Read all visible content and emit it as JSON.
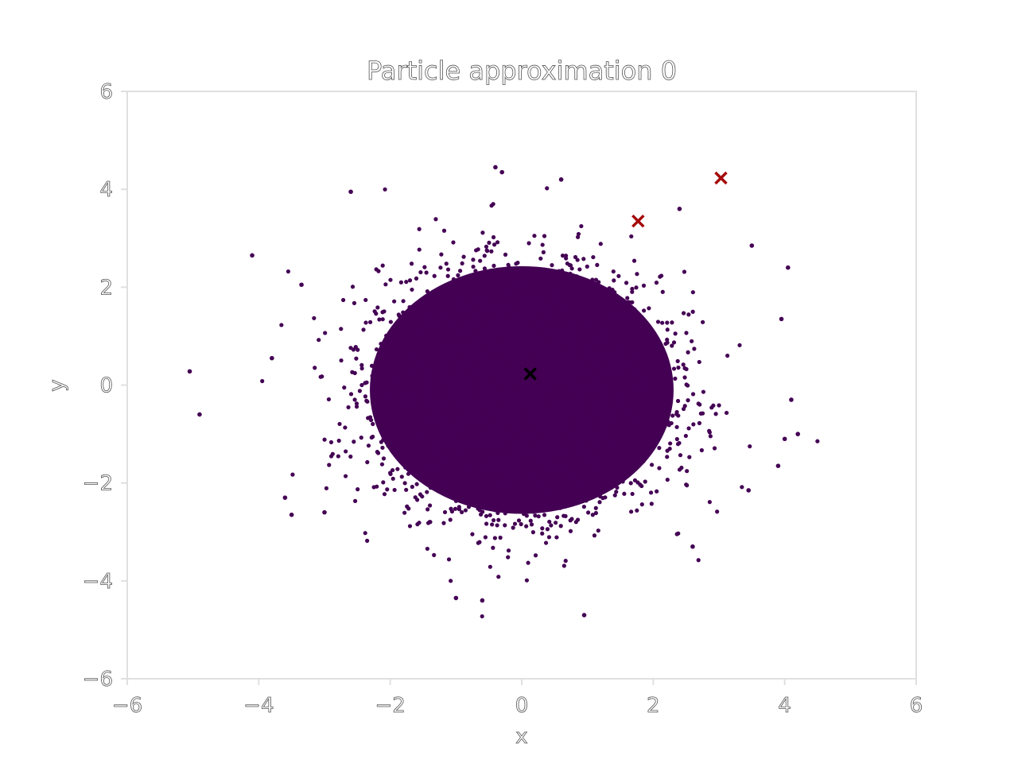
{
  "chart_data": {
    "type": "scatter",
    "title": "Particle approximation 0",
    "xlabel": "x",
    "ylabel": "y",
    "xlim": [
      -6,
      6
    ],
    "ylim": [
      -6,
      6
    ],
    "x_ticks": [
      "−6",
      "−4",
      "−2",
      "0",
      "2",
      "4",
      "6"
    ],
    "y_ticks": [
      "−6",
      "−4",
      "−2",
      "0",
      "2",
      "4",
      "6"
    ],
    "grid": false,
    "legend": "none",
    "series": [
      {
        "marker": "dot",
        "color": "#440154",
        "distribution": {
          "center": [
            0.0,
            -0.1
          ],
          "spread": [
            1.05,
            1.15
          ]
        },
        "outliers": [
          [
            -5.05,
            0.28
          ],
          [
            -4.9,
            -0.6
          ],
          [
            -4.1,
            2.65
          ],
          [
            -2.6,
            3.95
          ],
          [
            -0.4,
            4.45
          ],
          [
            -0.3,
            4.35
          ],
          [
            0.6,
            4.2
          ],
          [
            2.4,
            3.6
          ],
          [
            3.5,
            2.85
          ],
          [
            4.05,
            2.4
          ],
          [
            4.2,
            -1.0
          ],
          [
            4.1,
            -0.3
          ],
          [
            4.0,
            -1.1
          ],
          [
            3.9,
            -1.65
          ],
          [
            3.45,
            -2.15
          ],
          [
            0.95,
            -4.7
          ],
          [
            -0.6,
            -4.4
          ],
          [
            -1.0,
            -4.35
          ],
          [
            -3.0,
            -2.6
          ],
          [
            -3.6,
            -2.3
          ],
          [
            -3.5,
            -2.65
          ],
          [
            -3.8,
            0.55
          ],
          [
            -3.35,
            2.05
          ],
          [
            3.95,
            1.35
          ],
          [
            2.6,
            -3.3
          ]
        ]
      },
      {
        "marker": "x",
        "color": "#000000",
        "points": [
          [
            0.13,
            0.23
          ]
        ]
      },
      {
        "marker": "x",
        "color": "#a60b0b",
        "points": [
          [
            1.77,
            3.35
          ],
          [
            3.03,
            4.23
          ]
        ]
      }
    ]
  }
}
